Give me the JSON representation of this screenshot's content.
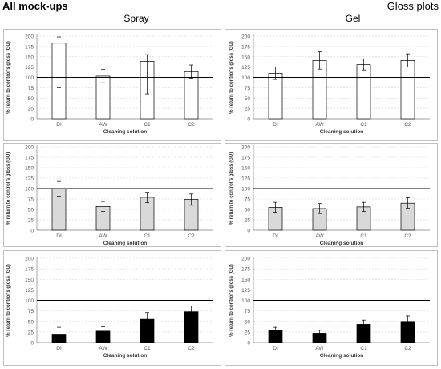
{
  "header": {
    "left": "All mock-ups",
    "right": "Gloss plots"
  },
  "columns": [
    {
      "title": "Spray"
    },
    {
      "title": "Gel"
    }
  ],
  "colors": {
    "white_fill": "#ffffff",
    "grey_fill": "#d9d9d9",
    "black_fill": "#000000"
  },
  "chart_data": [
    {
      "type": "bar",
      "panel": "spray-white",
      "categories": [
        "DI",
        "AW",
        "C1",
        "C2"
      ],
      "values": [
        183,
        103,
        139,
        114
      ],
      "errors": [
        [
          75,
          198
        ],
        [
          87,
          119
        ],
        [
          60,
          155
        ],
        [
          98,
          130
        ]
      ],
      "fill": "#ffffff",
      "ylabel": "% return to control's gloss (GU)",
      "xlabel": "Cleaning solution",
      "ylim": [
        0,
        200
      ],
      "yticks": [
        "0",
        "25",
        "50",
        "75",
        "100",
        "125",
        "150",
        "175",
        "200"
      ],
      "reference": 100
    },
    {
      "type": "bar",
      "panel": "gel-white",
      "categories": [
        "DI",
        "AW",
        "C1",
        "C2"
      ],
      "values": [
        110,
        141,
        131,
        141
      ],
      "errors": [
        [
          95,
          125
        ],
        [
          120,
          162
        ],
        [
          118,
          145
        ],
        [
          125,
          157
        ]
      ],
      "fill": "#ffffff",
      "ylabel": "% return to control's gloss (GU)",
      "xlabel": "Cleaning solution",
      "ylim": [
        0,
        200
      ],
      "yticks": [
        "0",
        "25",
        "50",
        "75",
        "100",
        "125",
        "150",
        "175",
        "200"
      ],
      "reference": 100
    },
    {
      "type": "bar",
      "panel": "spray-grey",
      "categories": [
        "DI",
        "AW",
        "C1",
        "C2"
      ],
      "values": [
        100,
        57,
        79,
        74
      ],
      "errors": [
        [
          82,
          117
        ],
        [
          45,
          69
        ],
        [
          66,
          91
        ],
        [
          60,
          87
        ]
      ],
      "fill": "#d9d9d9",
      "ylabel": "% return to control's gloss (GU)",
      "xlabel": "Cleaning solution",
      "ylim": [
        0,
        200
      ],
      "yticks": [
        "0",
        "25",
        "50",
        "75",
        "100",
        "125",
        "150",
        "175",
        "200"
      ],
      "reference": 100
    },
    {
      "type": "bar",
      "panel": "gel-grey",
      "categories": [
        "DI",
        "AW",
        "C1",
        "C2"
      ],
      "values": [
        55,
        52,
        56,
        65
      ],
      "errors": [
        [
          43,
          67
        ],
        [
          40,
          64
        ],
        [
          45,
          67
        ],
        [
          53,
          78
        ]
      ],
      "fill": "#d9d9d9",
      "ylabel": "% return to control's gloss (GU)",
      "xlabel": "Cleaning solution",
      "ylim": [
        0,
        200
      ],
      "yticks": [
        "0",
        "25",
        "50",
        "75",
        "100",
        "125",
        "150",
        "175",
        "200"
      ],
      "reference": 100
    },
    {
      "type": "bar",
      "panel": "spray-black",
      "categories": [
        "DI",
        "AW",
        "C1",
        "C2"
      ],
      "values": [
        20,
        27,
        55,
        73
      ],
      "errors": [
        [
          5,
          36
        ],
        [
          17,
          37
        ],
        [
          40,
          71
        ],
        [
          60,
          87
        ]
      ],
      "fill": "#000000",
      "ylabel": "% return to control's gloss (GU)",
      "xlabel": "Cleaning solution",
      "ylim": [
        0,
        200
      ],
      "yticks": [
        "0",
        "25",
        "50",
        "75",
        "100",
        "125",
        "150",
        "175",
        "200"
      ],
      "reference": 100
    },
    {
      "type": "bar",
      "panel": "gel-black",
      "categories": [
        "DI",
        "AW",
        "C1",
        "C2"
      ],
      "values": [
        28,
        22,
        43,
        50
      ],
      "errors": [
        [
          20,
          36
        ],
        [
          15,
          29
        ],
        [
          33,
          53
        ],
        [
          38,
          63
        ]
      ],
      "fill": "#000000",
      "ylabel": "% return to control's gloss (GU)",
      "xlabel": "Cleaning solution",
      "ylim": [
        0,
        200
      ],
      "yticks": [
        "0",
        "25",
        "50",
        "75",
        "100",
        "125",
        "150",
        "175",
        "200"
      ],
      "reference": 100
    }
  ]
}
